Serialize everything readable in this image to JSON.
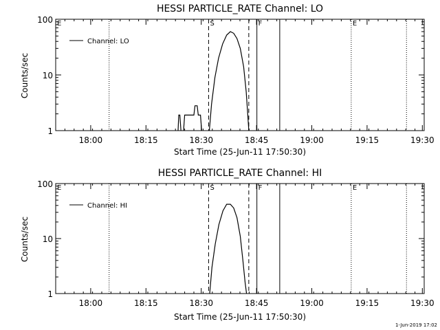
{
  "page": {
    "footer": "1-Jun-2019 17:02"
  },
  "chart_data": [
    {
      "type": "line",
      "title": "HESSI PARTICLE_RATE Channel: LO",
      "xlabel": "Start Time (25-Jun-11 17:50:30)",
      "ylabel": "Counts/sec",
      "yscale": "log",
      "ylim": [
        1,
        100
      ],
      "xlim_minutes": [
        0,
        100
      ],
      "xticks": [
        {
          "m": 9.5,
          "label": "18:00"
        },
        {
          "m": 24.5,
          "label": "18:15"
        },
        {
          "m": 39.5,
          "label": "18:30"
        },
        {
          "m": 54.5,
          "label": "18:45"
        },
        {
          "m": 69.5,
          "label": "19:00"
        },
        {
          "m": 84.5,
          "label": "19:15"
        },
        {
          "m": 99.5,
          "label": "19:30"
        }
      ],
      "yticks": [
        {
          "v": 1,
          "label": "1"
        },
        {
          "v": 10,
          "label": "10"
        },
        {
          "v": 100,
          "label": "100"
        }
      ],
      "legend": {
        "label": "Channel: LO",
        "position": "top-left"
      },
      "markers": [
        {
          "m": 0,
          "letter": "E",
          "style": "dotted"
        },
        {
          "m": 14.5,
          "letter": "",
          "style": "dotted"
        },
        {
          "m": 41.5,
          "letter": "S",
          "style": "dashed"
        },
        {
          "m": 52.4,
          "letter": "",
          "style": "dashed"
        },
        {
          "m": 54.6,
          "letter": "F",
          "style": "solid"
        },
        {
          "m": 60.8,
          "letter": "",
          "style": "solid"
        },
        {
          "m": 80.2,
          "letter": "E",
          "style": "dotted"
        },
        {
          "m": 95.2,
          "letter": "",
          "style": "dotted"
        }
      ],
      "series": [
        {
          "segments": [
            [
              [
                33.2,
                1.0
              ],
              [
                33.4,
                1.9
              ],
              [
                33.7,
                1.9
              ],
              [
                34.0,
                1.0
              ]
            ],
            [
              [
                34.7,
                1.0
              ],
              [
                35.0,
                1.9
              ],
              [
                37.5,
                1.9
              ],
              [
                37.8,
                2.8
              ],
              [
                38.4,
                2.8
              ],
              [
                38.7,
                1.9
              ],
              [
                39.3,
                1.9
              ],
              [
                39.6,
                1.0
              ]
            ],
            [
              [
                41.7,
                1.0
              ],
              [
                42.3,
                3.0
              ],
              [
                43.2,
                9.0
              ],
              [
                44.2,
                20.0
              ],
              [
                45.3,
                36.0
              ],
              [
                46.4,
                52.0
              ],
              [
                47.4,
                60.0
              ],
              [
                48.3,
                56.0
              ],
              [
                49.2,
                45.0
              ],
              [
                50.1,
                30.0
              ],
              [
                51.0,
                14.0
              ],
              [
                51.7,
                5.0
              ],
              [
                52.1,
                2.0
              ],
              [
                52.4,
                1.0
              ]
            ]
          ]
        }
      ]
    },
    {
      "type": "line",
      "title": "HESSI PARTICLE_RATE Channel: HI",
      "xlabel": "Start Time (25-Jun-11 17:50:30)",
      "ylabel": "Counts/sec",
      "yscale": "log",
      "ylim": [
        1,
        100
      ],
      "xlim_minutes": [
        0,
        100
      ],
      "xticks": [
        {
          "m": 9.5,
          "label": "18:00"
        },
        {
          "m": 24.5,
          "label": "18:15"
        },
        {
          "m": 39.5,
          "label": "18:30"
        },
        {
          "m": 54.5,
          "label": "18:45"
        },
        {
          "m": 69.5,
          "label": "19:00"
        },
        {
          "m": 84.5,
          "label": "19:15"
        },
        {
          "m": 99.5,
          "label": "19:30"
        }
      ],
      "yticks": [
        {
          "v": 1,
          "label": "1"
        },
        {
          "v": 10,
          "label": "10"
        },
        {
          "v": 100,
          "label": "100"
        }
      ],
      "legend": {
        "label": "Channel: HI",
        "position": "top-left"
      },
      "markers": [
        {
          "m": 0,
          "letter": "E",
          "style": "dotted"
        },
        {
          "m": 14.5,
          "letter": "",
          "style": "dotted"
        },
        {
          "m": 41.5,
          "letter": "S",
          "style": "dashed"
        },
        {
          "m": 52.4,
          "letter": "",
          "style": "dashed"
        },
        {
          "m": 54.6,
          "letter": "F",
          "style": "solid"
        },
        {
          "m": 60.8,
          "letter": "",
          "style": "solid"
        },
        {
          "m": 80.2,
          "letter": "E",
          "style": "dotted"
        },
        {
          "m": 95.2,
          "letter": "",
          "style": "dotted"
        }
      ],
      "series": [
        {
          "segments": [
            [
              [
                41.8,
                1.0
              ],
              [
                42.4,
                3.0
              ],
              [
                43.3,
                8.0
              ],
              [
                44.3,
                18.0
              ],
              [
                45.4,
                32.0
              ],
              [
                46.4,
                42.0
              ],
              [
                47.4,
                42.0
              ],
              [
                48.3,
                36.0
              ],
              [
                49.2,
                24.0
              ],
              [
                50.1,
                11.0
              ],
              [
                50.8,
                4.0
              ],
              [
                51.4,
                1.6
              ],
              [
                51.8,
                1.0
              ]
            ]
          ]
        }
      ]
    }
  ]
}
